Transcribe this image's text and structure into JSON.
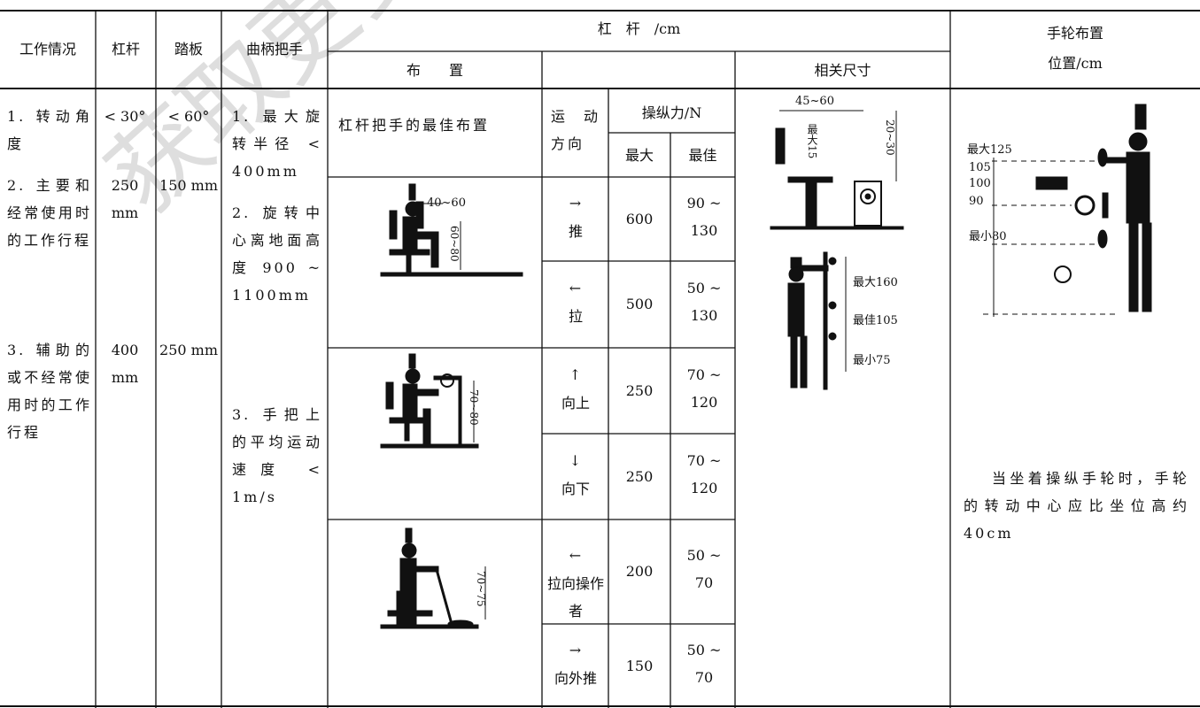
{
  "watermark": "获取更多资料",
  "table": {
    "header": {
      "work": "工作情况",
      "lever": "杠杆",
      "pedal": "踏板",
      "crank": "曲柄把手",
      "lever_group": "杠　杆　/cm",
      "layout": "布　　置",
      "dimensions": "相关尺寸",
      "handwheel": "手轮布置",
      "handwheel_unit": "位置/cm"
    },
    "work": [
      "1. 转动角度",
      "2. 主要和经常使用时的工作行程",
      "3. 辅助的或不经常使用时的工作行程"
    ],
    "lever": [
      "< 30°",
      "250 mm",
      "400 mm"
    ],
    "pedal": [
      "< 60°",
      "150 mm",
      "250 mm"
    ],
    "crank": [
      "1. 最大旋转半径 < 400mm",
      "2. 旋转中心离地面高度 900 ~ 1100mm",
      "3. 手把上的平均运动速度 < 1m/s"
    ],
    "sub": {
      "best_layout": "杠杆把手的最佳布置",
      "direction": "运动方向",
      "force": "操纵力/N",
      "max": "最大",
      "best": "最佳"
    },
    "rows": [
      {
        "arrow": "→",
        "direction": "推",
        "max": "600",
        "best": "90 ~ 130"
      },
      {
        "arrow": "←",
        "direction": "拉",
        "max": "500",
        "best": "50 ~ 130"
      },
      {
        "arrow": "↑",
        "direction": "向上",
        "max": "250",
        "best": "70 ~ 120"
      },
      {
        "arrow": "↓",
        "direction": "向下",
        "max": "250",
        "best": "70 ~ 120"
      },
      {
        "arrow": "←",
        "direction": "拉向操作者",
        "max": "200",
        "best": "50 ~ 70"
      },
      {
        "arrow": "→",
        "direction": "向外推",
        "max": "150",
        "best": "50 ~ 70"
      }
    ],
    "figures": {
      "seated_push": [
        "40~60",
        "60~80"
      ],
      "seated_up": [
        "70~80"
      ],
      "seated_pull": [
        "70~75"
      ],
      "dimensions": [
        "45~60",
        "最大15",
        "20~30",
        "最大160",
        "最佳105",
        "最小75"
      ],
      "handwheel": [
        "最大125",
        "105",
        "100",
        "90",
        "最小80"
      ]
    },
    "note": "当坐着操纵手轮时，手轮的转动中心应比坐位高约 40cm"
  }
}
